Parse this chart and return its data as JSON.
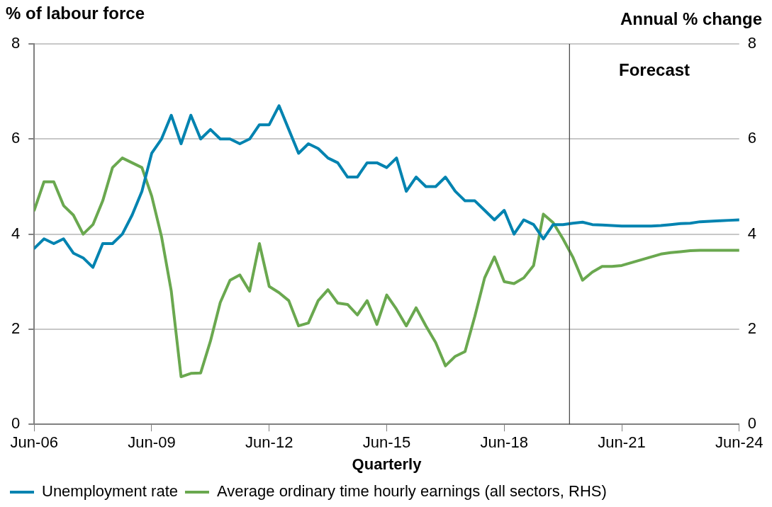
{
  "chart_data": {
    "type": "line",
    "xlabel": "Quarterly",
    "ylabel": "% of labour force",
    "y2label": "Annual % change",
    "x": [
      "2006-06",
      "2006-09",
      "2006-12",
      "2007-03",
      "2007-06",
      "2007-09",
      "2007-12",
      "2008-03",
      "2008-06",
      "2008-09",
      "2008-12",
      "2009-03",
      "2009-06",
      "2009-09",
      "2009-12",
      "2010-03",
      "2010-06",
      "2010-09",
      "2010-12",
      "2011-03",
      "2011-06",
      "2011-09",
      "2011-12",
      "2012-03",
      "2012-06",
      "2012-09",
      "2012-12",
      "2013-03",
      "2013-06",
      "2013-09",
      "2013-12",
      "2014-03",
      "2014-06",
      "2014-09",
      "2014-12",
      "2015-03",
      "2015-06",
      "2015-09",
      "2015-12",
      "2016-03",
      "2016-06",
      "2016-09",
      "2016-12",
      "2017-03",
      "2017-06",
      "2017-09",
      "2017-12",
      "2018-03",
      "2018-06",
      "2018-09",
      "2018-12",
      "2019-03",
      "2019-06",
      "2019-09",
      "2019-12",
      "2020-03",
      "2020-06",
      "2020-09",
      "2020-12",
      "2021-03",
      "2021-06",
      "2021-09",
      "2021-12",
      "2022-03",
      "2022-06",
      "2022-09",
      "2022-12",
      "2023-03",
      "2023-06",
      "2023-09",
      "2023-12",
      "2024-03",
      "2024-06"
    ],
    "series": [
      {
        "name": "Unemployment rate",
        "color": "#0083b0",
        "values": [
          3.7,
          3.9,
          3.8,
          3.9,
          3.6,
          3.5,
          3.3,
          3.8,
          3.8,
          4.0,
          4.4,
          4.9,
          5.7,
          6.0,
          6.5,
          5.9,
          6.5,
          6.0,
          6.2,
          6.0,
          6.0,
          5.9,
          6.0,
          6.3,
          6.3,
          6.7,
          6.2,
          5.7,
          5.9,
          5.8,
          5.6,
          5.5,
          5.2,
          5.2,
          5.5,
          5.5,
          5.4,
          5.6,
          4.9,
          5.2,
          5.0,
          5.0,
          5.2,
          4.9,
          4.7,
          4.7,
          4.5,
          4.3,
          4.5,
          4.0,
          4.3,
          4.2,
          3.9,
          4.2,
          4.2,
          4.23,
          4.25,
          4.2,
          4.19,
          4.18,
          4.17,
          4.17,
          4.17,
          4.17,
          4.18,
          4.2,
          4.22,
          4.23,
          4.26,
          4.27,
          4.28,
          4.29,
          4.3
        ]
      },
      {
        "name": "Average ordinary time hourly earnings (all sectors, RHS)",
        "color": "#6aa84f",
        "axis": "y2",
        "values": [
          4.5,
          5.1,
          5.1,
          4.6,
          4.4,
          4.0,
          4.2,
          4.7,
          5.4,
          5.6,
          5.5,
          5.4,
          4.8,
          3.95,
          2.8,
          1.0,
          1.07,
          1.08,
          1.75,
          2.56,
          3.03,
          3.14,
          2.8,
          3.8,
          2.9,
          2.77,
          2.6,
          2.07,
          2.13,
          2.6,
          2.83,
          2.55,
          2.52,
          2.3,
          2.6,
          2.1,
          2.72,
          2.42,
          2.07,
          2.45,
          2.07,
          1.72,
          1.23,
          1.43,
          1.53,
          2.27,
          3.08,
          3.52,
          3.0,
          2.96,
          3.08,
          3.34,
          4.42,
          4.24,
          3.9,
          3.52,
          3.03,
          3.2,
          3.32,
          3.32,
          3.34,
          3.4,
          3.46,
          3.52,
          3.58,
          3.61,
          3.63,
          3.65,
          3.66,
          3.66,
          3.66,
          3.66,
          3.66
        ]
      }
    ],
    "xlim": [
      "2006-06",
      "2024-06"
    ],
    "xticks": [
      {
        "value": "2006-06",
        "label": "Jun-06"
      },
      {
        "value": "2009-06",
        "label": "Jun-09"
      },
      {
        "value": "2012-06",
        "label": "Jun-12"
      },
      {
        "value": "2015-06",
        "label": "Jun-15"
      },
      {
        "value": "2018-06",
        "label": "Jun-18"
      },
      {
        "value": "2021-06",
        "label": "Jun-21"
      },
      {
        "value": "2024-06",
        "label": "Jun-24"
      }
    ],
    "ylim": [
      0,
      8
    ],
    "yticks": [
      0,
      2,
      4,
      6,
      8
    ],
    "y2lim": [
      0,
      8
    ],
    "y2ticks": [
      0,
      2,
      4,
      6,
      8
    ],
    "ref_lines": [
      {
        "axis": "x",
        "value": "2020-02",
        "label": "Forecast",
        "color": "#404040"
      }
    ],
    "grid": "y",
    "legend": "bottom",
    "marker": "none",
    "line_style": "solid"
  }
}
